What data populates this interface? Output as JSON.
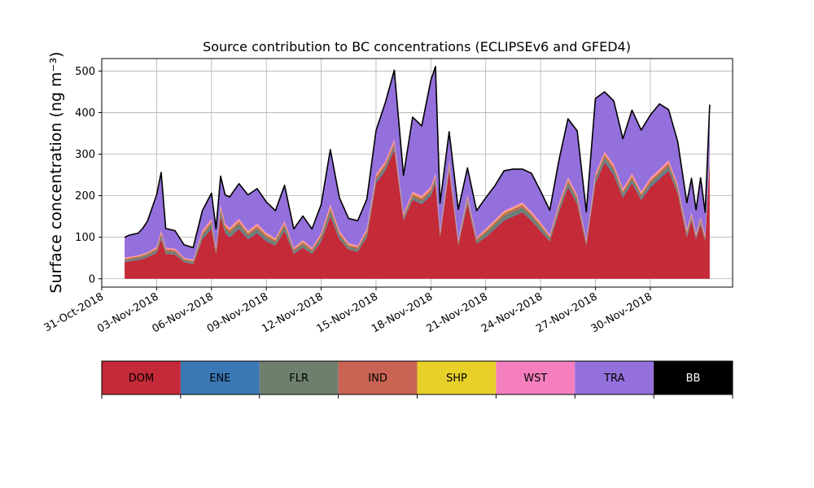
{
  "chart_data": {
    "type": "area",
    "stacked": true,
    "title": "Source contribution to BC concentrations (ECLIPSEv6 and GFED4)",
    "ylabel": "Surface concentration (ng m⁻³)",
    "xlabel": "",
    "grid": true,
    "ylim": [
      -20,
      530
    ],
    "xlim": [
      "2018-10-31T00:00",
      "2018-12-04T12:00"
    ],
    "yticks": [
      "0",
      "100",
      "200",
      "300",
      "400",
      "500"
    ],
    "xticks": [
      {
        "date": "2018-10-31",
        "label": "31-Oct-2018"
      },
      {
        "date": "2018-11-03",
        "label": "03-Nov-2018"
      },
      {
        "date": "2018-11-06",
        "label": "06-Nov-2018"
      },
      {
        "date": "2018-11-09",
        "label": "09-Nov-2018"
      },
      {
        "date": "2018-11-12",
        "label": "12-Nov-2018"
      },
      {
        "date": "2018-11-15",
        "label": "15-Nov-2018"
      },
      {
        "date": "2018-11-18",
        "label": "18-Nov-2018"
      },
      {
        "date": "2018-11-21",
        "label": "21-Nov-2018"
      },
      {
        "date": "2018-11-24",
        "label": "24-Nov-2018"
      },
      {
        "date": "2018-11-27",
        "label": "27-Nov-2018"
      },
      {
        "date": "2018-11-30",
        "label": "30-Nov-2018"
      }
    ],
    "x": [
      "2018-11-01T06:00",
      "2018-11-01T12:00",
      "2018-11-02T00:00",
      "2018-11-02T06:00",
      "2018-11-02T12:00",
      "2018-11-03T00:00",
      "2018-11-03T06:00",
      "2018-11-03T12:00",
      "2018-11-04T00:00",
      "2018-11-04T12:00",
      "2018-11-05T00:00",
      "2018-11-05T12:00",
      "2018-11-06T00:00",
      "2018-11-06T06:00",
      "2018-11-06T12:00",
      "2018-11-06T18:00",
      "2018-11-07T00:00",
      "2018-11-07T12:00",
      "2018-11-08T00:00",
      "2018-11-08T12:00",
      "2018-11-09T00:00",
      "2018-11-09T12:00",
      "2018-11-10T00:00",
      "2018-11-10T12:00",
      "2018-11-11T00:00",
      "2018-11-11T12:00",
      "2018-11-12T00:00",
      "2018-11-12T12:00",
      "2018-11-13T00:00",
      "2018-11-13T12:00",
      "2018-11-14T00:00",
      "2018-11-14T12:00",
      "2018-11-15T00:00",
      "2018-11-15T06:00",
      "2018-11-15T12:00",
      "2018-11-16T00:00",
      "2018-11-16T12:00",
      "2018-11-17T00:00",
      "2018-11-17T12:00",
      "2018-11-18T00:00",
      "2018-11-18T06:00",
      "2018-11-18T12:00",
      "2018-11-19T00:00",
      "2018-11-19T12:00",
      "2018-11-20T00:00",
      "2018-11-20T12:00",
      "2018-11-21T00:00",
      "2018-11-21T12:00",
      "2018-11-22T00:00",
      "2018-11-22T12:00",
      "2018-11-23T00:00",
      "2018-11-23T12:00",
      "2018-11-24T00:00",
      "2018-11-24T12:00",
      "2018-11-25T00:00",
      "2018-11-25T12:00",
      "2018-11-26T00:00",
      "2018-11-26T12:00",
      "2018-11-27T00:00",
      "2018-11-27T12:00",
      "2018-11-28T00:00",
      "2018-11-28T12:00",
      "2018-11-29T00:00",
      "2018-11-29T12:00",
      "2018-11-30T00:00",
      "2018-11-30T12:00",
      "2018-12-01T00:00",
      "2018-12-01T12:00",
      "2018-12-02T00:00",
      "2018-12-02T06:00",
      "2018-12-02T12:00",
      "2018-12-02T18:00",
      "2018-12-03T00:00",
      "2018-12-03T06:00"
    ],
    "series": [
      {
        "name": "DOM",
        "color": "#c42a37",
        "values": [
          40,
          42,
          45,
          48,
          52,
          62,
          95,
          60,
          58,
          40,
          35,
          95,
          120,
          60,
          150,
          110,
          100,
          120,
          95,
          110,
          90,
          80,
          115,
          60,
          75,
          60,
          90,
          150,
          95,
          70,
          65,
          100,
          230,
          245,
          260,
          310,
          140,
          190,
          180,
          200,
          230,
          100,
          260,
          80,
          180,
          85,
          100,
          120,
          140,
          150,
          160,
          140,
          115,
          90,
          160,
          220,
          180,
          80,
          230,
          280,
          250,
          195,
          230,
          190,
          220,
          240,
          260,
          205,
          100,
          140,
          95,
          130,
          90,
          280
        ]
      },
      {
        "name": "ENE",
        "color": "#3a78b5",
        "values": [
          1,
          1,
          1,
          1,
          1,
          1,
          2,
          1,
          1,
          1,
          1,
          2,
          2,
          1,
          2,
          2,
          2,
          2,
          2,
          2,
          2,
          1,
          2,
          1,
          1,
          1,
          2,
          2,
          2,
          1,
          1,
          2,
          3,
          3,
          3,
          3,
          2,
          2,
          2,
          3,
          3,
          2,
          3,
          1,
          2,
          1,
          2,
          2,
          2,
          2,
          2,
          2,
          2,
          1,
          2,
          3,
          2,
          1,
          3,
          3,
          3,
          2,
          3,
          2,
          3,
          3,
          3,
          2,
          2,
          2,
          1,
          2,
          1,
          3
        ]
      },
      {
        "name": "FLR",
        "color": "#6e7f6e",
        "values": [
          4,
          4,
          5,
          5,
          5,
          6,
          8,
          6,
          6,
          4,
          4,
          8,
          10,
          6,
          12,
          9,
          9,
          10,
          8,
          9,
          8,
          7,
          10,
          6,
          7,
          6,
          8,
          12,
          8,
          6,
          6,
          8,
          6,
          6,
          6,
          7,
          5,
          6,
          6,
          6,
          7,
          5,
          7,
          5,
          8,
          6,
          8,
          9,
          10,
          10,
          10,
          9,
          8,
          7,
          8,
          9,
          8,
          5,
          8,
          9,
          9,
          8,
          8,
          7,
          8,
          8,
          9,
          8,
          6,
          6,
          5,
          6,
          5,
          8
        ]
      },
      {
        "name": "IND",
        "color": "#c96454",
        "values": [
          3,
          3,
          3,
          3,
          3,
          4,
          5,
          4,
          4,
          3,
          3,
          5,
          6,
          4,
          7,
          6,
          6,
          6,
          5,
          6,
          5,
          5,
          6,
          4,
          5,
          4,
          5,
          7,
          5,
          4,
          4,
          5,
          7,
          7,
          7,
          8,
          5,
          6,
          6,
          6,
          7,
          4,
          7,
          4,
          5,
          4,
          5,
          5,
          6,
          6,
          6,
          5,
          5,
          4,
          5,
          6,
          6,
          4,
          6,
          7,
          7,
          6,
          6,
          5,
          6,
          6,
          7,
          6,
          5,
          5,
          4,
          5,
          4,
          7
        ]
      },
      {
        "name": "SHP",
        "color": "#e8d02b",
        "values": [
          1,
          1,
          1,
          1,
          1,
          1,
          2,
          1,
          1,
          1,
          1,
          2,
          2,
          1,
          2,
          2,
          2,
          2,
          2,
          2,
          2,
          2,
          2,
          1,
          2,
          1,
          2,
          3,
          2,
          2,
          1,
          2,
          2,
          2,
          2,
          2,
          1,
          2,
          2,
          2,
          2,
          1,
          2,
          1,
          2,
          1,
          2,
          2,
          2,
          2,
          2,
          2,
          2,
          1,
          2,
          2,
          2,
          1,
          2,
          2,
          2,
          2,
          2,
          2,
          2,
          2,
          2,
          2,
          2,
          2,
          1,
          2,
          1,
          2
        ]
      },
      {
        "name": "WST",
        "color": "#f57fbe",
        "values": [
          2,
          2,
          2,
          2,
          2,
          3,
          4,
          3,
          3,
          2,
          2,
          4,
          5,
          3,
          5,
          4,
          4,
          5,
          4,
          4,
          4,
          3,
          4,
          3,
          3,
          3,
          4,
          5,
          4,
          3,
          3,
          4,
          5,
          5,
          5,
          6,
          4,
          4,
          4,
          5,
          5,
          3,
          5,
          3,
          4,
          3,
          4,
          4,
          4,
          4,
          4,
          4,
          4,
          3,
          4,
          5,
          4,
          3,
          5,
          5,
          5,
          4,
          5,
          4,
          5,
          5,
          5,
          4,
          4,
          4,
          3,
          4,
          3,
          5
        ]
      },
      {
        "name": "TRA",
        "color": "#9370db",
        "values": [
          49,
          52,
          53,
          62,
          75,
          125,
          140,
          46,
          43,
          31,
          29,
          48,
          61,
          46,
          69,
          69,
          74,
          84,
          86,
          84,
          74,
          66,
          86,
          45,
          58,
          45,
          68,
          132,
          79,
          59,
          60,
          71,
          104,
          122,
          140,
          166,
          92,
          179,
          168,
          256,
          257,
          67,
          70,
          73,
          66,
          64,
          74,
          82,
          96,
          90,
          80,
          92,
          75,
          59,
          104,
          140,
          154,
          67,
          180,
          144,
          152,
          120,
          152,
          148,
          150,
          157,
          121,
          103,
          64,
          83,
          57,
          94,
          56,
          114
        ]
      },
      {
        "name": "BB",
        "color": "#000000",
        "values": [
          0,
          0,
          0,
          0,
          0,
          0,
          0,
          0,
          0,
          0,
          0,
          0,
          0,
          0,
          0,
          0,
          0,
          0,
          0,
          0,
          0,
          0,
          0,
          0,
          0,
          0,
          0,
          0,
          0,
          0,
          0,
          0,
          0,
          0,
          0,
          0,
          0,
          0,
          0,
          0,
          0,
          0,
          0,
          0,
          0,
          0,
          0,
          0,
          0,
          0,
          0,
          0,
          0,
          0,
          0,
          0,
          0,
          0,
          0,
          0,
          0,
          0,
          0,
          0,
          0,
          0,
          0,
          0,
          0,
          0,
          0,
          0,
          0,
          0
        ]
      }
    ],
    "legend": {
      "placement": "bottom",
      "entries": [
        {
          "label": "DOM",
          "color": "#c42a37",
          "text_color": "#000000"
        },
        {
          "label": "ENE",
          "color": "#3a78b5",
          "text_color": "#000000"
        },
        {
          "label": "FLR",
          "color": "#6e7f6e",
          "text_color": "#000000"
        },
        {
          "label": "IND",
          "color": "#c96454",
          "text_color": "#000000"
        },
        {
          "label": "SHP",
          "color": "#e8d02b",
          "text_color": "#000000"
        },
        {
          "label": "WST",
          "color": "#f57fbe",
          "text_color": "#000000"
        },
        {
          "label": "TRA",
          "color": "#9370db",
          "text_color": "#000000"
        },
        {
          "label": "BB",
          "color": "#000000",
          "text_color": "#ffffff"
        }
      ]
    }
  }
}
